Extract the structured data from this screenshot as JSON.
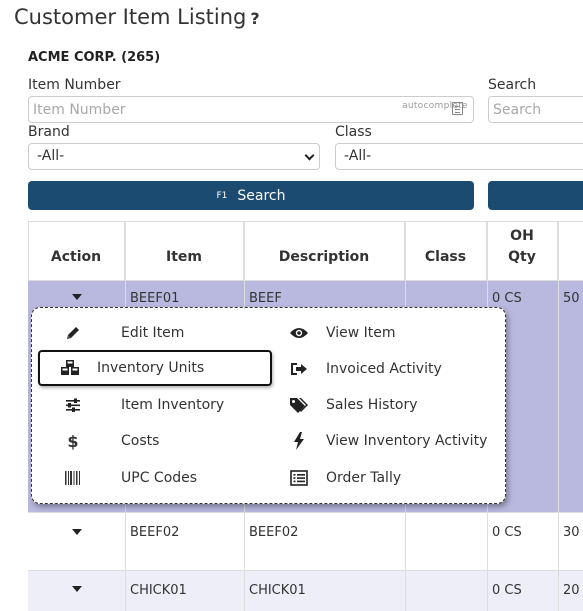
{
  "page": {
    "title": "Customer Item Listing",
    "help": "?"
  },
  "company": "ACME CORP. (265)",
  "filters": {
    "item_number_label": "Item Number",
    "item_number_placeholder": "Item Number",
    "autocomplete_label": "autocomplete",
    "search_label": "Search",
    "search_placeholder": "Search",
    "brand_label": "Brand",
    "brand_value": "-All-",
    "class_label": "Class",
    "class_value": "-All-"
  },
  "buttons": {
    "search_key": "F1",
    "search_label": "Search"
  },
  "table": {
    "headers": {
      "action": "Action",
      "item": "Item",
      "description": "Description",
      "class": "Class",
      "oh_qty_1": "OH",
      "oh_qty_2": "Qty"
    },
    "rows": [
      {
        "item": "BEEF01",
        "description": "BEEF",
        "class": "",
        "oh_qty": "0 CS",
        "next": "50"
      },
      {
        "item": "BEEF02",
        "description": "BEEF02",
        "class": "",
        "oh_qty": "0 CS",
        "next": "30"
      },
      {
        "item": "CHICK01",
        "description": "CHICK01",
        "class": "",
        "oh_qty": "0 CS",
        "next": "20"
      }
    ]
  },
  "action_menu": {
    "left": [
      {
        "label": "Edit Item",
        "icon": "pencil-icon"
      },
      {
        "label": "Inventory Units",
        "icon": "cubes-icon"
      },
      {
        "label": "Item Inventory",
        "icon": "sliders-icon"
      },
      {
        "label": "Costs",
        "icon": "dollar-icon"
      },
      {
        "label": "UPC Codes",
        "icon": "barcode-icon"
      }
    ],
    "right": [
      {
        "label": "View Item",
        "icon": "eye-icon"
      },
      {
        "label": "Invoiced Activity",
        "icon": "sign-out-icon"
      },
      {
        "label": "Sales History",
        "icon": "tags-icon"
      },
      {
        "label": "View Inventory Activity",
        "icon": "bolt-icon"
      },
      {
        "label": "Order Tally",
        "icon": "list-alt-icon"
      }
    ]
  },
  "colors": {
    "primary": "#1c4b72",
    "selected_row": "#b9b9e0",
    "alt_row": "#eeeef8"
  }
}
